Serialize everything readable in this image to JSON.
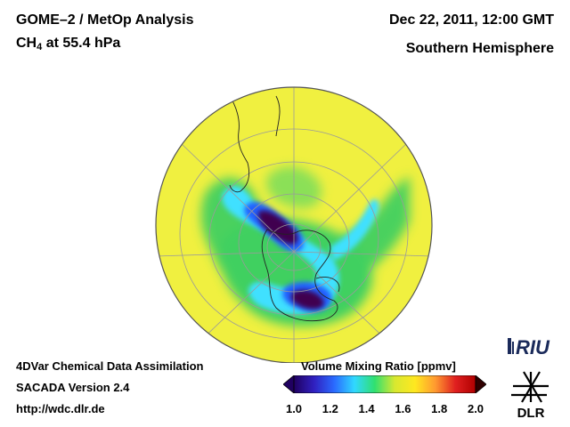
{
  "title": {
    "analysis": "GOME–2 / MetOp Analysis",
    "species_prefix": "CH",
    "species_subscript": "4",
    "level": "at 55.4 hPa"
  },
  "datetime": "Dec 22, 2011, 12:00 GMT",
  "region": "Southern Hemisphere",
  "footer": {
    "line1": "4DVar Chemical Data Assimilation",
    "line2": "SACADA Version 2.4",
    "line3": "http://wdc.dlr.de"
  },
  "colorbar": {
    "title": "Volume Mixing Ratio [ppmv]",
    "ticks": [
      "1.0",
      "1.2",
      "1.4",
      "1.6",
      "1.8",
      "2.0"
    ],
    "min": 1.0,
    "max": 2.0,
    "colors": [
      "#200060",
      "#3020c0",
      "#2a6aff",
      "#30d8ff",
      "#30e070",
      "#d8e830",
      "#ffe820",
      "#ff9a30",
      "#e02020",
      "#b00000"
    ]
  },
  "map_colors": {
    "background": "#f0f040",
    "green": "#40d060",
    "cyan": "#40e0ff",
    "blue": "#2060ff",
    "dark": "#400050"
  },
  "logos": {
    "riu": "RIU",
    "dlr": "DLR"
  }
}
